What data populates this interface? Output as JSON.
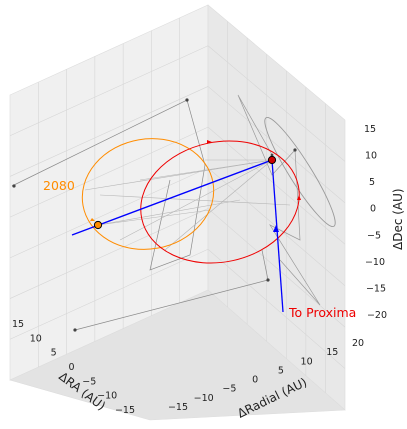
{
  "chart_data": {
    "type": "3d-orbit",
    "title": "",
    "axes": {
      "x": {
        "label": "ΔRA (AU)",
        "ticks": [
          "15",
          "10",
          "5",
          "0",
          "−5",
          "−10",
          "−15"
        ]
      },
      "y": {
        "label": "ΔRadial (AU)",
        "ticks": [
          "−15",
          "−10",
          "−5",
          "0",
          "5",
          "10",
          "15",
          "20"
        ]
      },
      "z": {
        "label": "ΔDec (AU)",
        "ticks": [
          "15",
          "10",
          "5",
          "0",
          "−5",
          "−10",
          "−15",
          "−20"
        ]
      }
    },
    "grid": true,
    "annotations": [
      {
        "text": "2080",
        "color": "#ff8c00"
      },
      {
        "text": "To Proxima",
        "color": "#ee0000"
      }
    ],
    "series": [
      {
        "name": "",
        "color": "#ff8c00",
        "kind": "orbit"
      },
      {
        "name": "",
        "color": "#ee0000",
        "kind": "orbit"
      },
      {
        "name": "",
        "color": "#999999",
        "kind": "orbit"
      },
      {
        "name": "",
        "color": "#0000ff",
        "kind": "direction"
      }
    ]
  }
}
